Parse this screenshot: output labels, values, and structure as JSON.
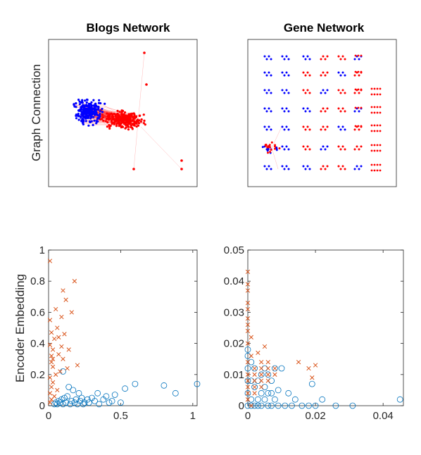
{
  "colors": {
    "graph_red": "#ff0000",
    "graph_blue": "#0000ff",
    "series_circle": "#0072bd",
    "series_cross": "#d95319",
    "axis": "#262626"
  },
  "labels": {
    "row1_ylabel": "Graph Connection",
    "row2_ylabel": "Encoder Embedding"
  },
  "chart_data": [
    {
      "type": "scatter",
      "panel": "top-left",
      "title": "Blogs Network",
      "axes_visible": false,
      "description_series": [
        {
          "marker": "dot",
          "color": "#0000ff",
          "cluster": "left dense cloud"
        },
        {
          "marker": "dot",
          "color": "#ff0000",
          "cluster": "right dense cloud with outliers"
        }
      ]
    },
    {
      "type": "scatter",
      "panel": "top-right",
      "title": "Gene Network",
      "axes_visible": false,
      "description_series": [
        {
          "marker": "dot",
          "color": "#0000ff",
          "cluster": "small components, left"
        },
        {
          "marker": "dot",
          "color": "#ff0000",
          "cluster": "small components, right grid"
        }
      ]
    },
    {
      "type": "scatter",
      "panel": "bottom-left",
      "title": "",
      "xlim": [
        0,
        1.03
      ],
      "ylim": [
        0,
        1
      ],
      "xticks": [
        "0",
        "0.5",
        "1"
      ],
      "xtick_values": [
        0,
        0.5,
        1
      ],
      "yticks": [
        "0",
        "0.2",
        "0.4",
        "0.6",
        "0.8",
        "1"
      ],
      "ytick_values": [
        0,
        0.2,
        0.4,
        0.6,
        0.8,
        1
      ],
      "series": [
        {
          "marker": "circle",
          "color": "#0072bd",
          "points": [
            [
              1.03,
              0.14
            ],
            [
              0.8,
              0.13
            ],
            [
              0.88,
              0.08
            ],
            [
              0.6,
              0.14
            ],
            [
              0.53,
              0.11
            ],
            [
              0.46,
              0.07
            ],
            [
              0.4,
              0.06
            ],
            [
              0.34,
              0.08
            ],
            [
              0.3,
              0.05
            ],
            [
              0.27,
              0.04
            ],
            [
              0.25,
              0.02
            ],
            [
              0.22,
              0.03
            ],
            [
              0.2,
              0.01
            ],
            [
              0.18,
              0.02
            ],
            [
              0.15,
              0.01
            ],
            [
              0.12,
              0.02
            ],
            [
              0.1,
              0.01
            ],
            [
              0.08,
              0.02
            ],
            [
              0.06,
              0.01
            ],
            [
              0.05,
              0.02
            ],
            [
              0.1,
              0.22
            ],
            [
              0.14,
              0.12
            ],
            [
              0.17,
              0.1
            ],
            [
              0.35,
              0.01
            ],
            [
              0.42,
              0.02
            ],
            [
              0.09,
              0.04
            ],
            [
              0.16,
              0.03
            ],
            [
              0.23,
              0.05
            ],
            [
              0.13,
              0.06
            ],
            [
              0.21,
              0.08
            ],
            [
              0.28,
              0.02
            ],
            [
              0.32,
              0.03
            ],
            [
              0.38,
              0.04
            ],
            [
              0.44,
              0.03
            ],
            [
              0.5,
              0.02
            ],
            [
              0.07,
              0.03
            ],
            [
              0.11,
              0.05
            ],
            [
              0.19,
              0.04
            ],
            [
              0.24,
              0.01
            ],
            [
              0.04,
              0.01
            ]
          ]
        },
        {
          "marker": "cross",
          "color": "#d95319",
          "points": [
            [
              0.01,
              0.93
            ],
            [
              0.18,
              0.8
            ],
            [
              0.1,
              0.74
            ],
            [
              0.12,
              0.68
            ],
            [
              0.05,
              0.62
            ],
            [
              0.09,
              0.57
            ],
            [
              0.16,
              0.6
            ],
            [
              0.06,
              0.5
            ],
            [
              0.02,
              0.47
            ],
            [
              0.04,
              0.43
            ],
            [
              0.11,
              0.46
            ],
            [
              0.01,
              0.39
            ],
            [
              0.03,
              0.36
            ],
            [
              0.07,
              0.33
            ],
            [
              0.1,
              0.3
            ],
            [
              0.2,
              0.26
            ],
            [
              0.13,
              0.24
            ],
            [
              0.08,
              0.22
            ],
            [
              0.02,
              0.28
            ],
            [
              0.05,
              0.2
            ],
            [
              0.01,
              0.18
            ],
            [
              0.03,
              0.15
            ],
            [
              0.02,
              0.12
            ],
            [
              0.06,
              0.1
            ],
            [
              0.01,
              0.08
            ],
            [
              0.04,
              0.06
            ],
            [
              0.02,
              0.04
            ],
            [
              0.01,
              0.02
            ],
            [
              0.03,
              0.25
            ],
            [
              0.02,
              0.32
            ],
            [
              0.14,
              0.36
            ],
            [
              0.07,
              0.44
            ],
            [
              0.09,
              0.38
            ],
            [
              0.01,
              0.55
            ],
            [
              0.03,
              0.3
            ]
          ]
        }
      ]
    },
    {
      "type": "scatter",
      "panel": "bottom-right",
      "title": "",
      "xlim": [
        0,
        0.046
      ],
      "ylim": [
        0,
        0.05
      ],
      "xticks": [
        "0",
        "0.02",
        "0.04"
      ],
      "xtick_values": [
        0,
        0.02,
        0.04
      ],
      "yticks": [
        "0",
        "0.01",
        "0.02",
        "0.03",
        "0.04",
        "0.05"
      ],
      "ytick_values": [
        0,
        0.01,
        0.02,
        0.03,
        0.04,
        0.05
      ],
      "series": [
        {
          "marker": "circle",
          "color": "#0072bd",
          "points": [
            [
              0.045,
              0.002
            ],
            [
              0.031,
              0.0
            ],
            [
              0.026,
              0.0
            ],
            [
              0.022,
              0.002
            ],
            [
              0.02,
              0.0
            ],
            [
              0.018,
              0.0
            ],
            [
              0.016,
              0.0
            ],
            [
              0.019,
              0.007
            ],
            [
              0.014,
              0.002
            ],
            [
              0.013,
              0.0
            ],
            [
              0.012,
              0.004
            ],
            [
              0.011,
              0.0
            ],
            [
              0.01,
              0.012
            ],
            [
              0.009,
              0.005
            ],
            [
              0.008,
              0.002
            ],
            [
              0.007,
              0.0
            ],
            [
              0.006,
              0.01
            ],
            [
              0.005,
              0.006
            ],
            [
              0.004,
              0.0
            ],
            [
              0.003,
              0.008
            ],
            [
              0.002,
              0.012
            ],
            [
              0.001,
              0.002
            ],
            [
              0.0,
              0.0
            ],
            [
              0.0,
              0.004
            ],
            [
              0.0,
              0.008
            ],
            [
              0.0,
              0.012
            ],
            [
              0.0,
              0.016
            ],
            [
              0.0,
              0.018
            ],
            [
              0.001,
              0.014
            ],
            [
              0.002,
              0.006
            ],
            [
              0.003,
              0.002
            ],
            [
              0.004,
              0.01
            ],
            [
              0.005,
              0.002
            ],
            [
              0.006,
              0.004
            ],
            [
              0.007,
              0.008
            ],
            [
              0.008,
              0.012
            ],
            [
              0.009,
              0.0
            ],
            [
              0.001,
              0.0
            ],
            [
              0.002,
              0.0
            ],
            [
              0.003,
              0.0
            ],
            [
              0.004,
              0.004
            ],
            [
              0.005,
              0.012
            ],
            [
              0.006,
              0.0
            ],
            [
              0.001,
              0.008
            ],
            [
              0.007,
              0.004
            ]
          ]
        },
        {
          "marker": "cross",
          "color": "#d95319",
          "points": [
            [
              0.0,
              0.043
            ],
            [
              0.0,
              0.039
            ],
            [
              0.0,
              0.037
            ],
            [
              0.0,
              0.033
            ],
            [
              0.0,
              0.031
            ],
            [
              0.0,
              0.028
            ],
            [
              0.0,
              0.026
            ],
            [
              0.0,
              0.024
            ],
            [
              0.001,
              0.022
            ],
            [
              0.0,
              0.02
            ],
            [
              0.005,
              0.019
            ],
            [
              0.003,
              0.017
            ],
            [
              0.001,
              0.016
            ],
            [
              0.0,
              0.014
            ],
            [
              0.004,
              0.014
            ],
            [
              0.006,
              0.014
            ],
            [
              0.002,
              0.012
            ],
            [
              0.004,
              0.012
            ],
            [
              0.006,
              0.012
            ],
            [
              0.008,
              0.012
            ],
            [
              0.0,
              0.01
            ],
            [
              0.002,
              0.01
            ],
            [
              0.004,
              0.01
            ],
            [
              0.006,
              0.01
            ],
            [
              0.008,
              0.01
            ],
            [
              0.0,
              0.008
            ],
            [
              0.002,
              0.008
            ],
            [
              0.004,
              0.008
            ],
            [
              0.006,
              0.008
            ],
            [
              0.0,
              0.006
            ],
            [
              0.002,
              0.006
            ],
            [
              0.004,
              0.006
            ],
            [
              0.0,
              0.004
            ],
            [
              0.002,
              0.004
            ],
            [
              0.0,
              0.002
            ],
            [
              0.015,
              0.014
            ],
            [
              0.018,
              0.012
            ],
            [
              0.02,
              0.013
            ],
            [
              0.019,
              0.009
            ],
            [
              0.001,
              0.0
            ]
          ]
        }
      ]
    }
  ]
}
